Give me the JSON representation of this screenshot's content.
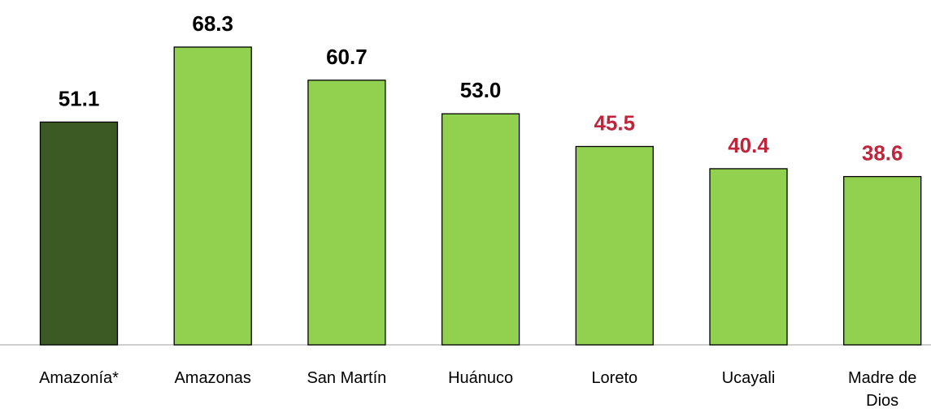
{
  "chart_data": {
    "type": "bar",
    "categories": [
      "Amazonía*",
      "Amazonas",
      "San Martín",
      "Huánuco",
      "Loreto",
      "Ucayali",
      "Madre de Dios"
    ],
    "values": [
      51.1,
      68.3,
      60.7,
      53,
      45.5,
      40.4,
      38.6
    ],
    "value_labels": [
      "51.1",
      "68.3",
      "60.7",
      "53.0",
      "45.5",
      "40.4",
      "38.6"
    ],
    "colors": [
      "#3c5a23",
      "#92d050",
      "#92d050",
      "#92d050",
      "#92d050",
      "#92d050",
      "#92d050"
    ],
    "value_label_colors": [
      "#000000",
      "#000000",
      "#000000",
      "#000000",
      "#c0243b",
      "#c0243b",
      "#c0243b"
    ]
  }
}
